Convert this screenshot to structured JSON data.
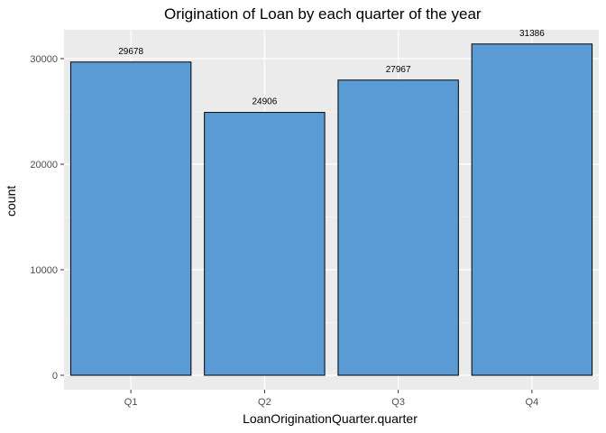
{
  "chart_data": {
    "type": "bar",
    "title": "Origination of Loan by each quarter of the year",
    "xlabel": "LoanOriginationQuarter.quarter",
    "ylabel": "count",
    "categories": [
      "Q1",
      "Q2",
      "Q3",
      "Q4"
    ],
    "values": [
      29678,
      24906,
      27967,
      31386
    ],
    "data_labels": [
      "29678",
      "24906",
      "27967",
      "31386"
    ],
    "ylim": [
      0,
      33000
    ],
    "yticks": [
      0,
      10000,
      20000,
      30000
    ],
    "ytick_labels": [
      "0",
      "10000",
      "20000",
      "30000"
    ],
    "grid": true,
    "legend": "none"
  },
  "colors": {
    "bar_fill": "#5b9bd5",
    "bar_stroke": "#000000",
    "panel_bg": "#ebebeb",
    "grid_major": "#ffffff",
    "tick_label": "#4d4d4d"
  }
}
